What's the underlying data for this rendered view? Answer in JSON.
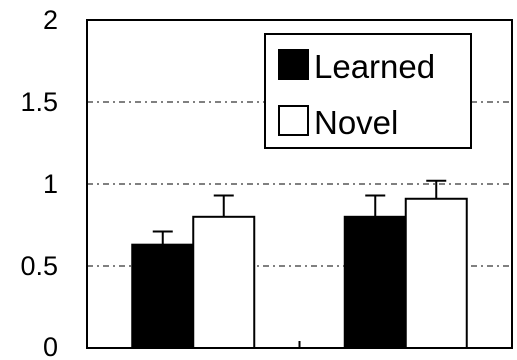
{
  "chart_data": {
    "type": "bar",
    "categories": [
      "",
      ""
    ],
    "series": [
      {
        "name": "Learned",
        "values": [
          0.63,
          0.8
        ],
        "errors": [
          0.08,
          0.13
        ],
        "fill": "#000000"
      },
      {
        "name": "Novel",
        "values": [
          0.8,
          0.91
        ],
        "errors": [
          0.13,
          0.11
        ],
        "fill": "#ffffff"
      }
    ],
    "ylim": [
      0,
      2
    ],
    "yticks": [
      {
        "value": 0,
        "label": "0"
      },
      {
        "value": 0.5,
        "label": "0.5"
      },
      {
        "value": 1,
        "label": "1"
      },
      {
        "value": 1.5,
        "label": "1.5"
      },
      {
        "value": 2,
        "label": "2"
      }
    ],
    "grid": {
      "style": "dash-dot",
      "values": [
        0.5,
        1,
        1.5
      ]
    },
    "legend": {
      "position": "top-right"
    }
  }
}
